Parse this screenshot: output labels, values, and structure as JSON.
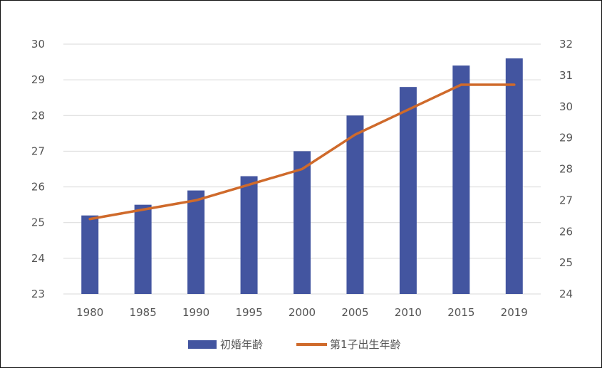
{
  "chart_data": {
    "type": "bar+line",
    "categories": [
      "1980",
      "1985",
      "1990",
      "1995",
      "2000",
      "2005",
      "2010",
      "2015",
      "2019"
    ],
    "series": [
      {
        "name": "初婚年齢",
        "type": "bar",
        "axis": "left",
        "color": "#4355a0",
        "values": [
          25.2,
          25.5,
          25.9,
          26.3,
          27.0,
          28.0,
          28.8,
          29.4,
          29.6
        ]
      },
      {
        "name": "第1子出生年齢",
        "type": "line",
        "axis": "right",
        "color": "#cf6a2b",
        "values": [
          26.4,
          26.7,
          27.0,
          27.5,
          28.0,
          29.1,
          29.9,
          30.7,
          30.7
        ]
      }
    ],
    "y_left": {
      "range": [
        23,
        30
      ],
      "ticks": [
        "23",
        "24",
        "25",
        "26",
        "27",
        "28",
        "29",
        "30"
      ]
    },
    "y_right": {
      "range": [
        24,
        32
      ],
      "ticks": [
        "24",
        "25",
        "26",
        "27",
        "28",
        "29",
        "30",
        "31",
        "32"
      ]
    },
    "grid": true,
    "legend_position": "bottom",
    "title": "",
    "xlabel": "",
    "ylabel": ""
  }
}
